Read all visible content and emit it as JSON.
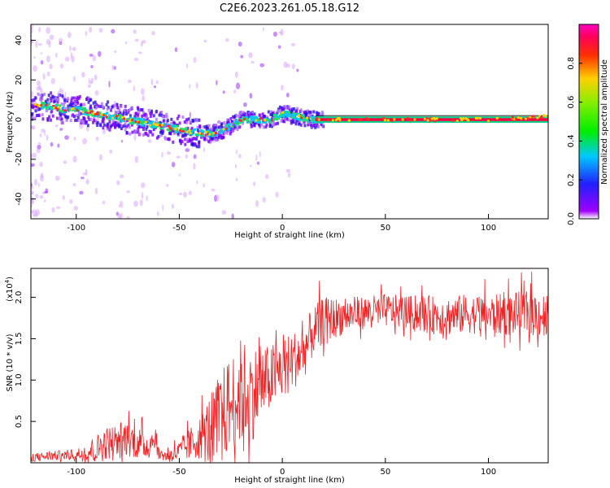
{
  "title": "C2E6.2023.261.05.18.G12",
  "chart_data": [
    {
      "type": "heatmap",
      "xlabel": "Height of straight line (km)",
      "ylabel": "Frequency (Hz)",
      "xlim": [
        -122,
        129
      ],
      "ylim": [
        -50,
        48
      ],
      "xticks": [
        -100,
        -50,
        0,
        50,
        100
      ],
      "yticks": [
        -40,
        -20,
        0,
        20,
        40
      ],
      "ridge": {
        "x": [
          -120,
          -115,
          -110,
          -105,
          -100,
          -95,
          -90,
          -85,
          -80,
          -75,
          -70,
          -65,
          -60,
          -55,
          -50,
          -45,
          -40,
          -35,
          -30,
          -25,
          -20,
          -15,
          -10,
          -5,
          0,
          5,
          10,
          15,
          20,
          40,
          60,
          80,
          100,
          120,
          129
        ],
        "frequency": [
          7,
          7,
          6,
          5,
          5,
          4,
          3,
          2,
          1,
          0,
          -1,
          -2,
          -3,
          -4,
          -5,
          -6,
          -7,
          -7,
          -6,
          -3,
          0,
          0,
          0,
          0,
          3,
          2,
          1,
          0,
          0,
          0,
          0,
          0,
          0,
          1,
          2
        ]
      },
      "colorbar": {
        "label": "Normalized spectral amplitude",
        "ticks": [
          "0.0",
          "0.2",
          "0.4",
          "0.6",
          "0.8"
        ],
        "tick_values": [
          0.0,
          0.2,
          0.4,
          0.6,
          0.8
        ],
        "range": [
          0,
          1
        ],
        "colormap": "rainbow (purple-blue-cyan-green-yellow-red-magenta)"
      },
      "grid": false
    },
    {
      "type": "line",
      "xlabel": "Height of straight line (km)",
      "ylabel": "SNR (10 * v/v)",
      "y_multiplier_label": "(x10",
      "y_multiplier_exponent": "4",
      "xlim": [
        -122,
        129
      ],
      "ylim": [
        0,
        23500
      ],
      "xticks": [
        -100,
        -50,
        0,
        50,
        100
      ],
      "yticks": [
        5000,
        10000,
        15000,
        20000
      ],
      "ytick_labels": [
        "0.5",
        "1.0",
        "1.5",
        "2.0"
      ],
      "series": [
        {
          "color": "#ee2222",
          "x": [
            -122,
            -110,
            -100,
            -90,
            -85,
            -80,
            -75,
            -70,
            -65,
            -62,
            -60,
            -55,
            -50,
            -45,
            -40,
            -35,
            -30,
            -25,
            -20,
            -15,
            -10,
            -5,
            0,
            5,
            10,
            15,
            20,
            30,
            40,
            50,
            60,
            70,
            80,
            90,
            100,
            110,
            120,
            129
          ],
          "values": [
            600,
            800,
            900,
            1500,
            2200,
            2500,
            2800,
            2200,
            1800,
            3000,
            1000,
            700,
            1200,
            2000,
            2800,
            3500,
            5000,
            6500,
            8000,
            7800,
            9000,
            10000,
            11000,
            12000,
            13000,
            15500,
            17000,
            17500,
            18000,
            18200,
            18000,
            17700,
            17500,
            17800,
            17600,
            17700,
            17800,
            17500
          ],
          "noise": [
            500,
            600,
            700,
            1800,
            2000,
            2200,
            2200,
            2000,
            1600,
            1400,
            700,
            800,
            1300,
            2000,
            2600,
            4500,
            5500,
            6000,
            6500,
            6000,
            4500,
            4000,
            3800,
            3500,
            3500,
            3000,
            2800,
            2200,
            2000,
            2000,
            2000,
            2300,
            2400,
            2400,
            2400,
            2600,
            2800,
            2800
          ]
        }
      ],
      "grid": false
    }
  ]
}
